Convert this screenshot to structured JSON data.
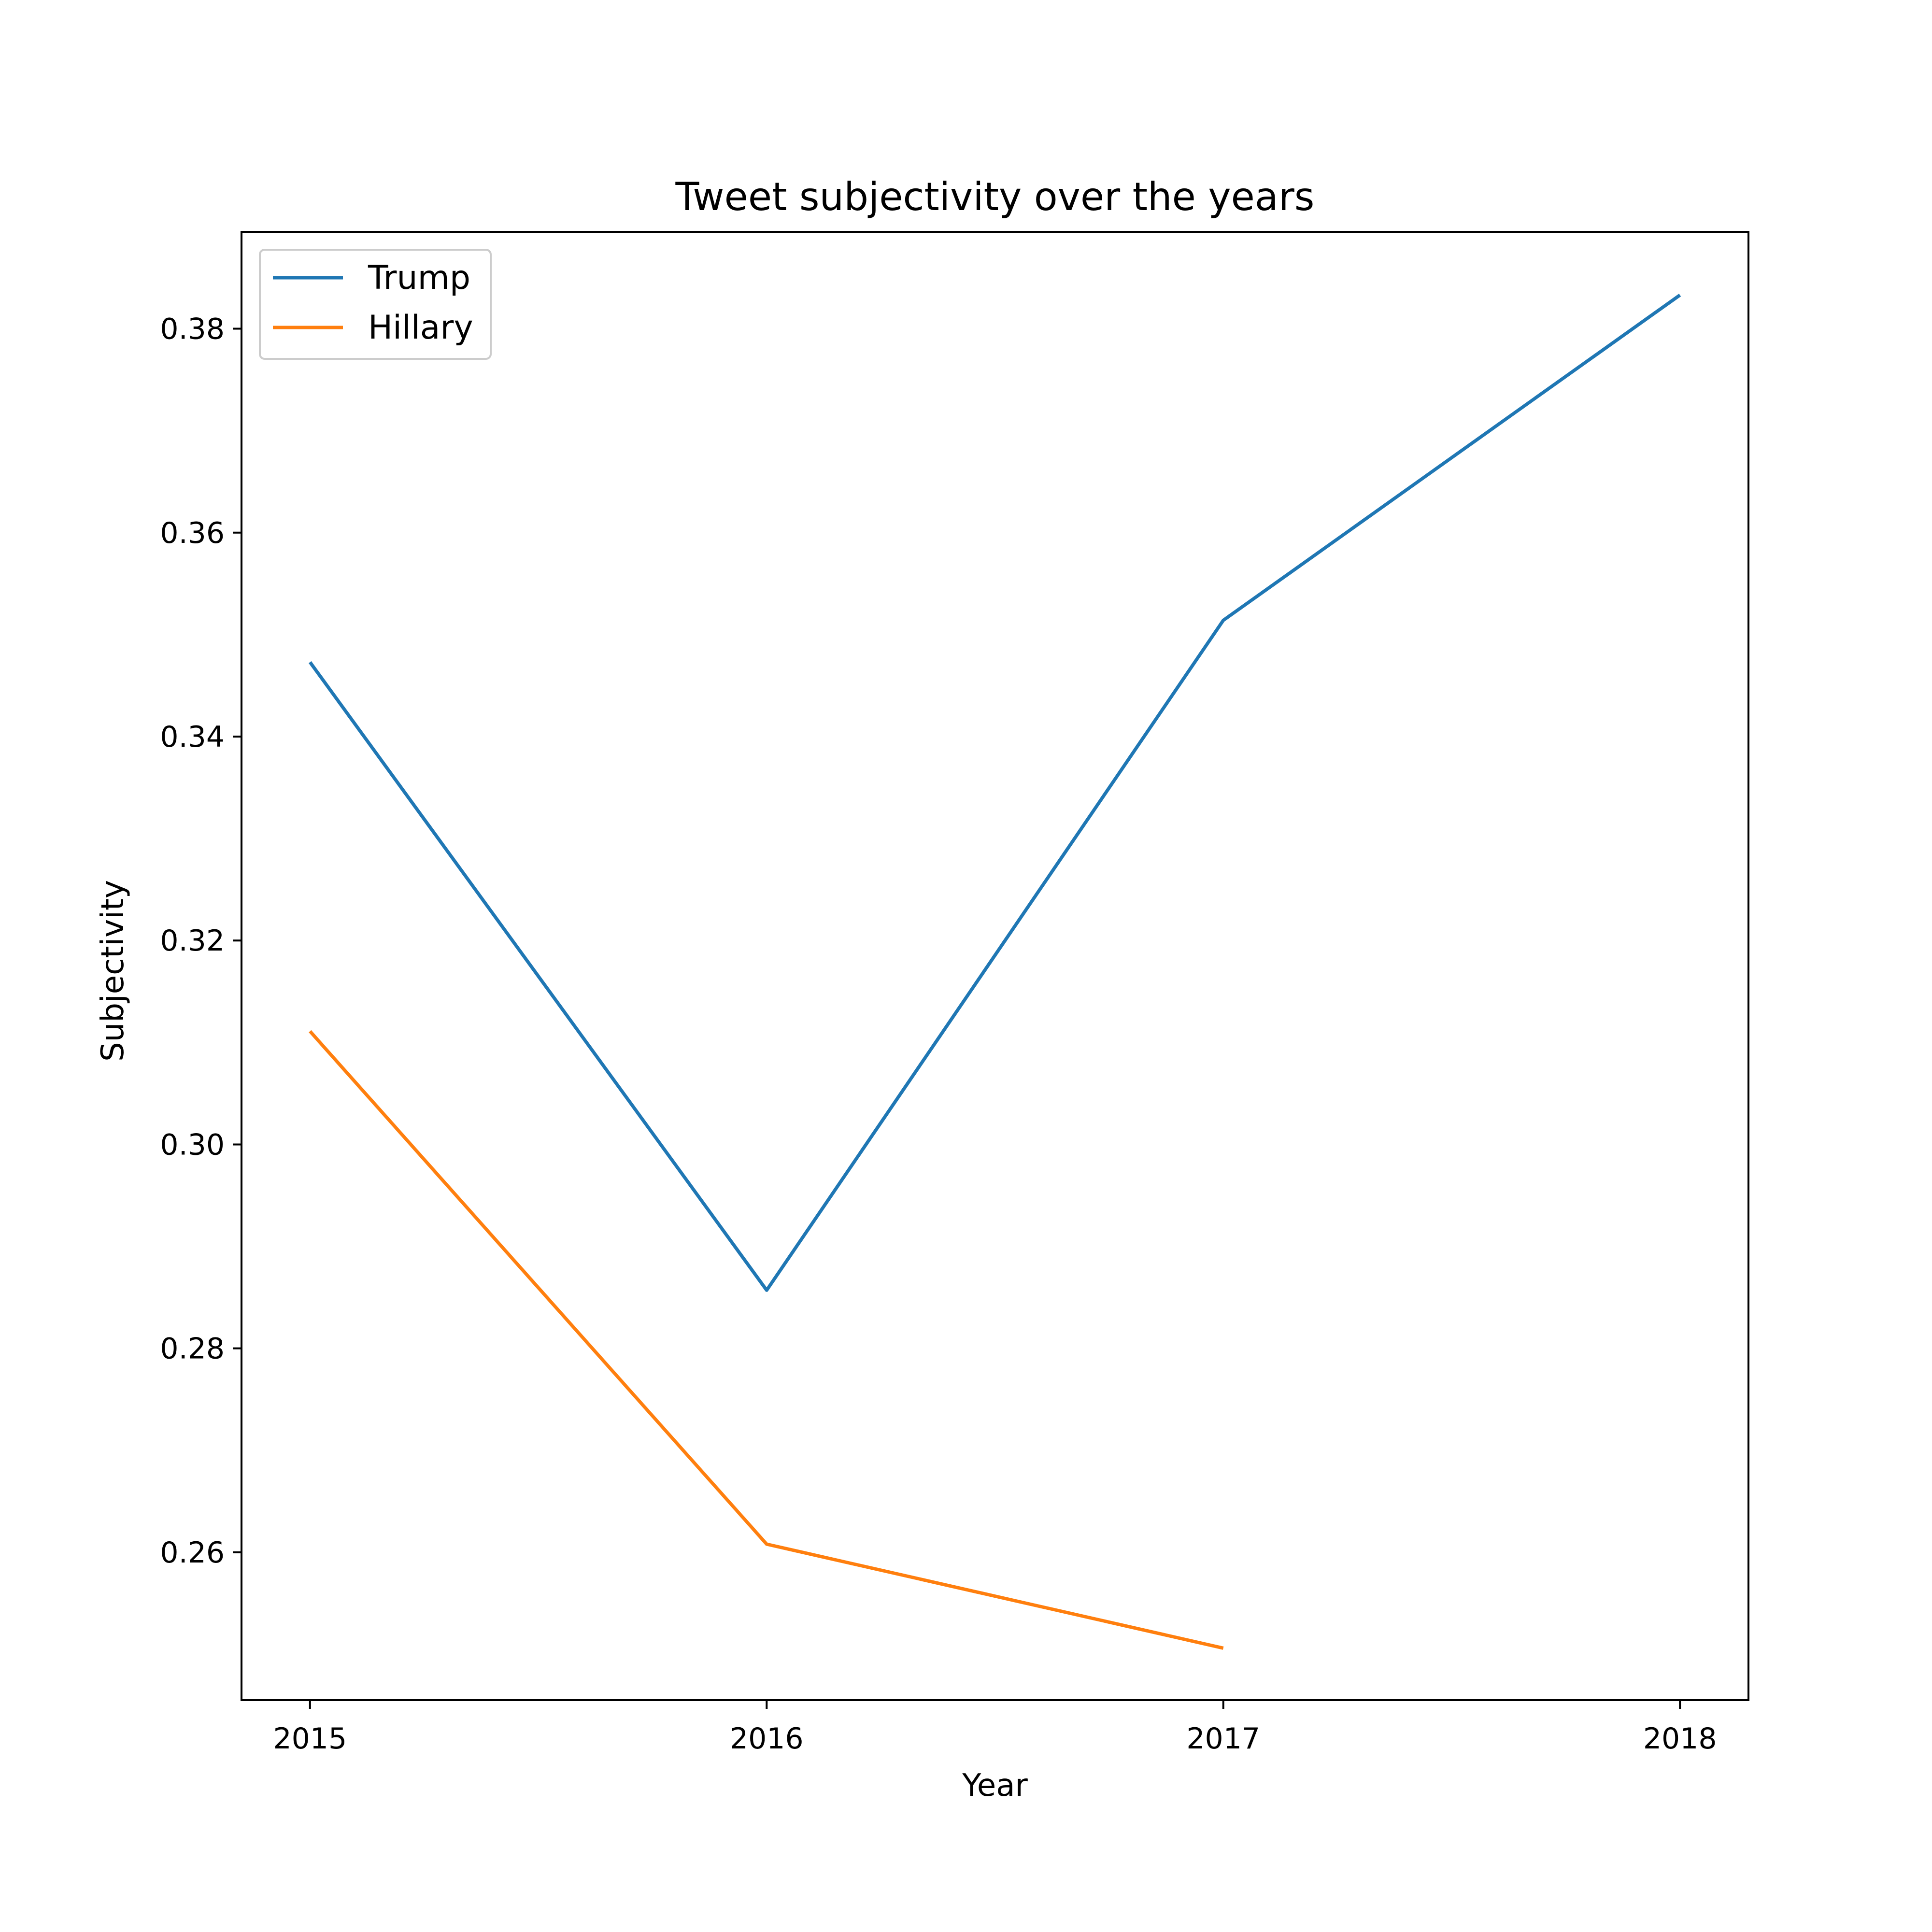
{
  "chart_data": {
    "type": "line",
    "title": "Tweet subjectivity over the years",
    "xlabel": "Year",
    "ylabel": "Subjectivity",
    "x_ticks": [
      "2015",
      "2016",
      "2017",
      "2018"
    ],
    "y_ticks": [
      "0.26",
      "0.28",
      "0.30",
      "0.32",
      "0.34",
      "0.36",
      "0.38"
    ],
    "xlim": [
      2014.85,
      2018.15
    ],
    "ylim": [
      0.2455,
      0.3895
    ],
    "grid": false,
    "legend_position": "top-left",
    "series": [
      {
        "name": "Trump",
        "color": "#1f77b4",
        "x": [
          2015,
          2016,
          2017,
          2018
        ],
        "y": [
          0.3473,
          0.2857,
          0.3514,
          0.3833
        ]
      },
      {
        "name": "Hillary",
        "color": "#ff7f0e",
        "x": [
          2015,
          2016,
          2017
        ],
        "y": [
          0.3111,
          0.2608,
          0.2506
        ]
      }
    ]
  }
}
